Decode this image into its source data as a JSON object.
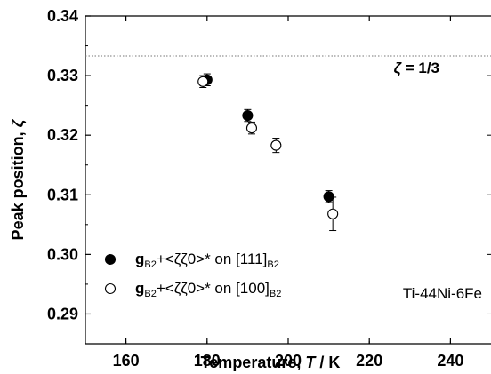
{
  "chart_data": {
    "type": "scatter",
    "title": "",
    "xlabel_prefix": "Temperature, ",
    "xlabel_var": "T",
    "xlabel_unit": " / K",
    "ylabel_prefix": "Peak position, ",
    "ylabel_var": "ζ",
    "xlim": [
      150,
      250
    ],
    "ylim": [
      0.285,
      0.34
    ],
    "x_ticks": [
      160,
      180,
      200,
      220,
      240
    ],
    "y_ticks": [
      0.29,
      0.3,
      0.31,
      0.32,
      0.33,
      0.34
    ],
    "y_tick_labels": [
      "0.29",
      "0.30",
      "0.31",
      "0.32",
      "0.33",
      "0.34"
    ],
    "reference_line": {
      "y": 0.3333,
      "style": "dotted",
      "label_var": "ζ",
      "label_rest": " = 1/3"
    },
    "sample_label": "Ti-44Ni-6Fe",
    "legend_position": "bottom-left",
    "series": [
      {
        "name": "gB2+<ζζ0>* on [111]B2",
        "name_parts": {
          "g": "g",
          "g_sub": "B2",
          "mid": "+<ζζ0>* on [111]",
          "tail_sub": "B2"
        },
        "marker": "filled-circle",
        "color": "#000000",
        "points": [
          {
            "x": 180,
            "y": 0.3293,
            "err": 0.001
          },
          {
            "x": 190,
            "y": 0.3233,
            "err": 0.001
          },
          {
            "x": 210,
            "y": 0.3097,
            "err": 0.001
          }
        ]
      },
      {
        "name": "gB2+<ζζ0>* on [100]B2",
        "name_parts": {
          "g": "g",
          "g_sub": "B2",
          "mid": "+<ζζ0>* on [100]",
          "tail_sub": "B2"
        },
        "marker": "open-circle",
        "color": "#000000",
        "points": [
          {
            "x": 179,
            "y": 0.329,
            "err": 0.001
          },
          {
            "x": 191,
            "y": 0.3212,
            "err": 0.001
          },
          {
            "x": 197,
            "y": 0.3183,
            "err": 0.0012
          },
          {
            "x": 211,
            "y": 0.3068,
            "err": 0.0028
          }
        ]
      }
    ]
  }
}
